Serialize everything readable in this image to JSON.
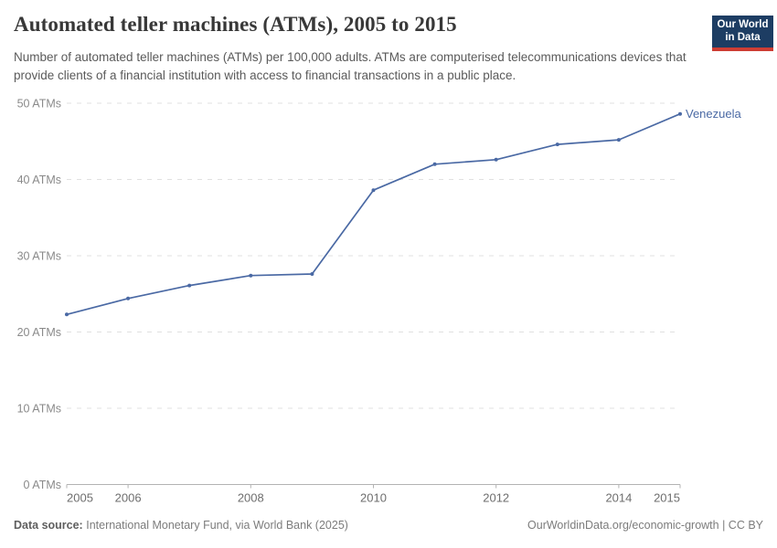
{
  "header": {
    "title": "Automated teller machines (ATMs), 2005 to 2015",
    "subtitle": "Number of automated teller machines (ATMs) per 100,000 adults. ATMs are computerised telecommunications devices that provide clients of a financial institution with access to financial transactions in a public place.",
    "logo": {
      "line1": "Our World",
      "line2": "in Data"
    }
  },
  "chart_data": {
    "type": "line",
    "title": "Automated teller machines (ATMs), 2005 to 2015",
    "x": [
      2005,
      2006,
      2007,
      2008,
      2009,
      2010,
      2011,
      2012,
      2013,
      2014,
      2015
    ],
    "series": [
      {
        "name": "Venezuela",
        "color": "#4a69a4",
        "values": [
          22.3,
          24.4,
          26.1,
          27.4,
          27.6,
          38.6,
          42.0,
          42.6,
          44.6,
          45.2,
          48.6
        ]
      }
    ],
    "xlabel": "",
    "ylabel": "",
    "ylim": [
      0,
      50
    ],
    "xlim": [
      2005,
      2015
    ],
    "grid": "horizontal-dashed",
    "legend": "end-of-line-label",
    "yticks": [
      {
        "value": 0,
        "label": "0 ATMs"
      },
      {
        "value": 10,
        "label": "10 ATMs"
      },
      {
        "value": 20,
        "label": "20 ATMs"
      },
      {
        "value": 30,
        "label": "30 ATMs"
      },
      {
        "value": 40,
        "label": "40 ATMs"
      },
      {
        "value": 50,
        "label": "50 ATMs"
      }
    ],
    "xticks": [
      {
        "value": 2005,
        "label": "2005",
        "align": "left"
      },
      {
        "value": 2006,
        "label": "2006",
        "align": "center"
      },
      {
        "value": 2008,
        "label": "2008",
        "align": "center"
      },
      {
        "value": 2010,
        "label": "2010",
        "align": "center"
      },
      {
        "value": 2012,
        "label": "2012",
        "align": "center"
      },
      {
        "value": 2014,
        "label": "2014",
        "align": "center"
      },
      {
        "value": 2015,
        "label": "2015",
        "align": "right"
      }
    ]
  },
  "footer": {
    "datasource_label": "Data source:",
    "datasource_value": "International Monetary Fund, via World Bank (2025)",
    "link": "OurWorldinData.org/economic-growth",
    "separator": " | ",
    "license": "CC BY"
  },
  "colors": {
    "accent_line": "#4a69a4",
    "title": "#383838",
    "subtitle": "#5a5a5a",
    "axis_text_y": "#8a8a8a",
    "axis_text_x": "#6e6e6e",
    "gridline": "#e0e0e0",
    "axis_line": "#b3b3b3",
    "footer_text": "#7c7c7c",
    "footer_label": "#5f5f5f",
    "logo_bg": "#1d3d63",
    "logo_bar": "#cd3d34",
    "logo_text": "#ffffff"
  }
}
